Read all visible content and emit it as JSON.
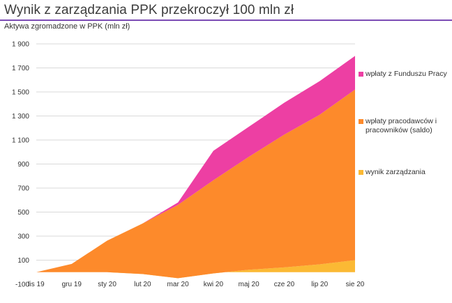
{
  "header": {
    "title": "Wynik z zarządzania PPK przekroczył 100 mln zł",
    "accent": "#7b4bb5"
  },
  "chart_data": {
    "type": "area",
    "stacked": true,
    "title": "Wynik z zarządzania PPK przekroczył 100 mln zł",
    "ylabel": "Aktywa zgromadzone w PPK (mln zł)",
    "xlabel": "",
    "categories": [
      "lis 19",
      "gru 19",
      "sty 20",
      "lut 20",
      "mar 20",
      "kwi 20",
      "maj 20",
      "cze 20",
      "lip 20",
      "sie 20"
    ],
    "y_ticks": [
      "-100",
      "100",
      "300",
      "500",
      "700",
      "900",
      "1 100",
      "1 300",
      "1 500",
      "1 700",
      "1 900"
    ],
    "ylim": [
      -100,
      1900
    ],
    "grid": true,
    "legend_position": "right",
    "series": [
      {
        "name": "wynik zarządzania",
        "color": "#fbb934",
        "values": [
          0,
          1,
          0,
          -15,
          -50,
          -10,
          20,
          40,
          65,
          100
        ]
      },
      {
        "name": "wpłaty pracodawców i pracowników (saldo)",
        "color": "#fd8a2b",
        "values": [
          0,
          68,
          262,
          420,
          610,
          775,
          940,
          1105,
          1245,
          1420
        ]
      },
      {
        "name": "wpłaty z Funduszu Pracy",
        "color": "#ed3fa3",
        "values": [
          0,
          0,
          0,
          0,
          20,
          245,
          250,
          265,
          280,
          280
        ]
      }
    ]
  }
}
